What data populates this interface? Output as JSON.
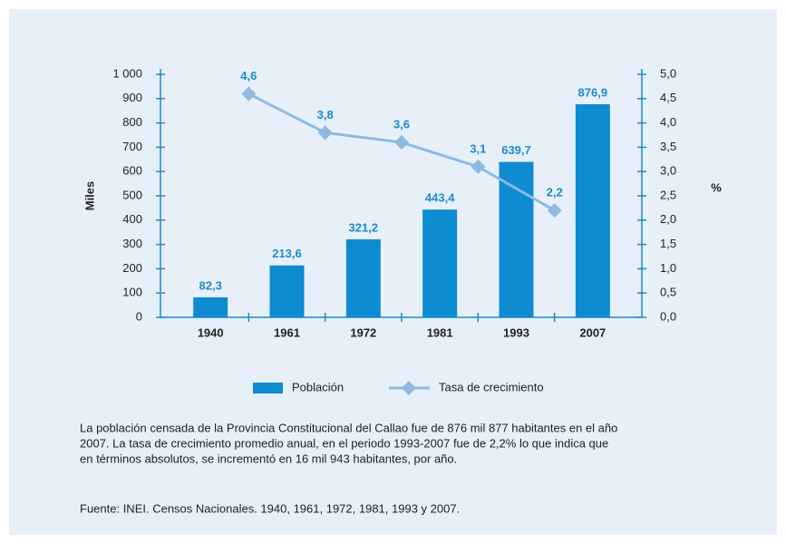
{
  "chart_data": {
    "type": "bar",
    "categories": [
      "1940",
      "1961",
      "1972",
      "1981",
      "1993",
      "2007"
    ],
    "ylabel": "Miles",
    "y2label": "%",
    "ylim": [
      0,
      1000
    ],
    "yticks": [
      0,
      100,
      200,
      300,
      400,
      500,
      600,
      700,
      800,
      900,
      {
        "value": 1000,
        "label": "1 000"
      }
    ],
    "y2lim": [
      0,
      5
    ],
    "y2ticks": [
      {
        "value": 0,
        "label": "0,0"
      },
      {
        "value": 0.5,
        "label": "0,5"
      },
      {
        "value": 1,
        "label": "1,0"
      },
      {
        "value": 1.5,
        "label": "1,5"
      },
      {
        "value": 2,
        "label": "2,0"
      },
      {
        "value": 2.5,
        "label": "2,5"
      },
      {
        "value": 3,
        "label": "3,0"
      },
      {
        "value": 3.5,
        "label": "3,5"
      },
      {
        "value": 4,
        "label": "4,0"
      },
      {
        "value": 4.5,
        "label": "4,5"
      },
      {
        "value": 5,
        "label": "5,0"
      }
    ],
    "series": [
      {
        "name": "Población",
        "type": "bar",
        "color": "#0f8bd2",
        "values": [
          82.3,
          213.6,
          321.2,
          443.4,
          639.7,
          876.9
        ],
        "value_labels": [
          "82,3",
          "213,6",
          "321,2",
          "443,4",
          "639,7",
          "876,9"
        ]
      },
      {
        "name": "Tasa de crecimiento",
        "type": "line",
        "axis": "y2",
        "color": "#8fb9e3",
        "values": [
          null,
          4.6,
          3.8,
          3.6,
          3.1,
          2.2
        ],
        "value_labels": [
          null,
          "4,6",
          "3,8",
          "3,6",
          "3,1",
          "2,2"
        ]
      }
    ],
    "legend": "bottom",
    "description": [
      "La población censada de la Provincia Constitucional del Callao fue de 876 mil 877 habitantes en el año",
      "2007. La tasa de crecimiento promedio anual, en el periodo 1993-2007 fue de 2,2% lo que indica que",
      "en términos absolutos, se incrementó en 16 mil 943 habitantes, por año."
    ],
    "source": "Fuente: INEI. Censos Nacionales. 1940, 1961, 1972, 1981, 1993 y 2007."
  }
}
